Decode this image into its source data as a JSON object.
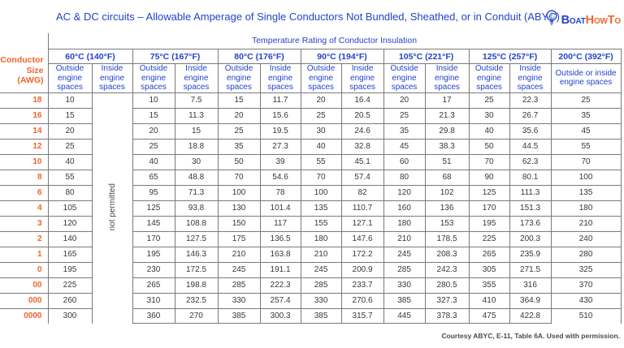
{
  "header": {
    "title": "AC & DC circuits – Allowable Amperage of Single Conductors Not Bundled, Sheathed, or in Conduit (ABYC)",
    "subtitle": "Temperature Rating of Conductor Insulation",
    "logo": {
      "part1": "Boat",
      "part2": "HowTo",
      "icon": "lightbulb-anchor-icon"
    }
  },
  "corner_label": "Conductor Size (AWG)",
  "not_permitted_label": "not permitted",
  "footer": "Courtesy ABYC, E-11, Table 6A. Used with permission.",
  "colors": {
    "blue": "#2443cb",
    "orange": "#f4632a",
    "grid": "#7a7a7a",
    "value_text": "#383838"
  },
  "chart_data": {
    "type": "table",
    "title": "AC & DC circuits – Allowable Amperage of Single Conductors Not Bundled, Sheathed, or in Conduit (ABYC)",
    "column_group_header": "Temperature Rating of Conductor Insulation",
    "temp_columns": [
      {
        "label": "60°C (140°F)",
        "sub": [
          "Outside engine spaces",
          "Inside engine spaces"
        ]
      },
      {
        "label": "75°C (167°F)",
        "sub": [
          "Outside engine spaces",
          "Inside engine spaces"
        ]
      },
      {
        "label": "80°C (176°F)",
        "sub": [
          "Outside engine spaces",
          "Inside engine spaces"
        ]
      },
      {
        "label": "90°C (194°F)",
        "sub": [
          "Outside engine spaces",
          "Inside engine spaces"
        ]
      },
      {
        "label": "105°C (221°F)",
        "sub": [
          "Outside engine spaces",
          "Inside engine spaces"
        ]
      },
      {
        "label": "125°C (257°F)",
        "sub": [
          "Outside engine spaces",
          "Inside engine spaces"
        ]
      },
      {
        "label": "200°C (392°F)",
        "sub": [
          "Outside or inside engine spaces"
        ]
      }
    ],
    "note": "60°C Inside engine spaces column is a single merged cell reading 'not permitted'; value order per row: 60out, 75out, 75in, 80out, 80in, 90out, 90in, 105out, 105in, 125out, 125in, 200",
    "rows": [
      {
        "awg": "18",
        "values": [
          "10",
          "10",
          "7.5",
          "15",
          "11.7",
          "20",
          "16.4",
          "20",
          "17",
          "25",
          "22.3",
          "25"
        ]
      },
      {
        "awg": "16",
        "values": [
          "15",
          "15",
          "11.3",
          "20",
          "15.6",
          "25",
          "20.5",
          "25",
          "21.3",
          "30",
          "26.7",
          "35"
        ]
      },
      {
        "awg": "14",
        "values": [
          "20",
          "20",
          "15",
          "25",
          "19.5",
          "30",
          "24.6",
          "35",
          "29.8",
          "40",
          "35.6",
          "45"
        ]
      },
      {
        "awg": "12",
        "values": [
          "25",
          "25",
          "18.8",
          "35",
          "27.3",
          "40",
          "32.8",
          "45",
          "38.3",
          "50",
          "44.5",
          "55"
        ]
      },
      {
        "awg": "10",
        "values": [
          "40",
          "40",
          "30",
          "50",
          "39",
          "55",
          "45.1",
          "60",
          "51",
          "70",
          "62.3",
          "70"
        ]
      },
      {
        "awg": "8",
        "values": [
          "55",
          "65",
          "48.8",
          "70",
          "54.6",
          "70",
          "57.4",
          "80",
          "68",
          "90",
          "80.1",
          "100"
        ]
      },
      {
        "awg": "6",
        "values": [
          "80",
          "95",
          "71.3",
          "100",
          "78",
          "100",
          "82",
          "120",
          "102",
          "125",
          "111.3",
          "135"
        ]
      },
      {
        "awg": "4",
        "values": [
          "105",
          "125",
          "93.8",
          "130",
          "101.4",
          "135",
          "110.7",
          "160",
          "136",
          "170",
          "151.3",
          "180"
        ]
      },
      {
        "awg": "3",
        "values": [
          "120",
          "145",
          "108.8",
          "150",
          "117",
          "155",
          "127.1",
          "180",
          "153",
          "195",
          "173.6",
          "210"
        ]
      },
      {
        "awg": "2",
        "values": [
          "140",
          "170",
          "127.5",
          "175",
          "136.5",
          "180",
          "147.6",
          "210",
          "178.5",
          "225",
          "200.3",
          "240"
        ]
      },
      {
        "awg": "1",
        "values": [
          "165",
          "195",
          "146.3",
          "210",
          "163.8",
          "210",
          "172.2",
          "245",
          "208.3",
          "265",
          "235.9",
          "280"
        ]
      },
      {
        "awg": "0",
        "values": [
          "195",
          "230",
          "172.5",
          "245",
          "191.1",
          "245",
          "200.9",
          "285",
          "242.3",
          "305",
          "271.5",
          "325"
        ]
      },
      {
        "awg": "00",
        "values": [
          "225",
          "265",
          "198.8",
          "285",
          "222.3",
          "285",
          "233.7",
          "330",
          "280.5",
          "355",
          "316",
          "370"
        ]
      },
      {
        "awg": "000",
        "values": [
          "260",
          "310",
          "232.5",
          "330",
          "257.4",
          "330",
          "270.6",
          "385",
          "327.3",
          "410",
          "364.9",
          "430"
        ]
      },
      {
        "awg": "0000",
        "values": [
          "300",
          "360",
          "270",
          "385",
          "300.3",
          "385",
          "315.7",
          "445",
          "378.3",
          "475",
          "422.8",
          "510"
        ]
      }
    ]
  }
}
